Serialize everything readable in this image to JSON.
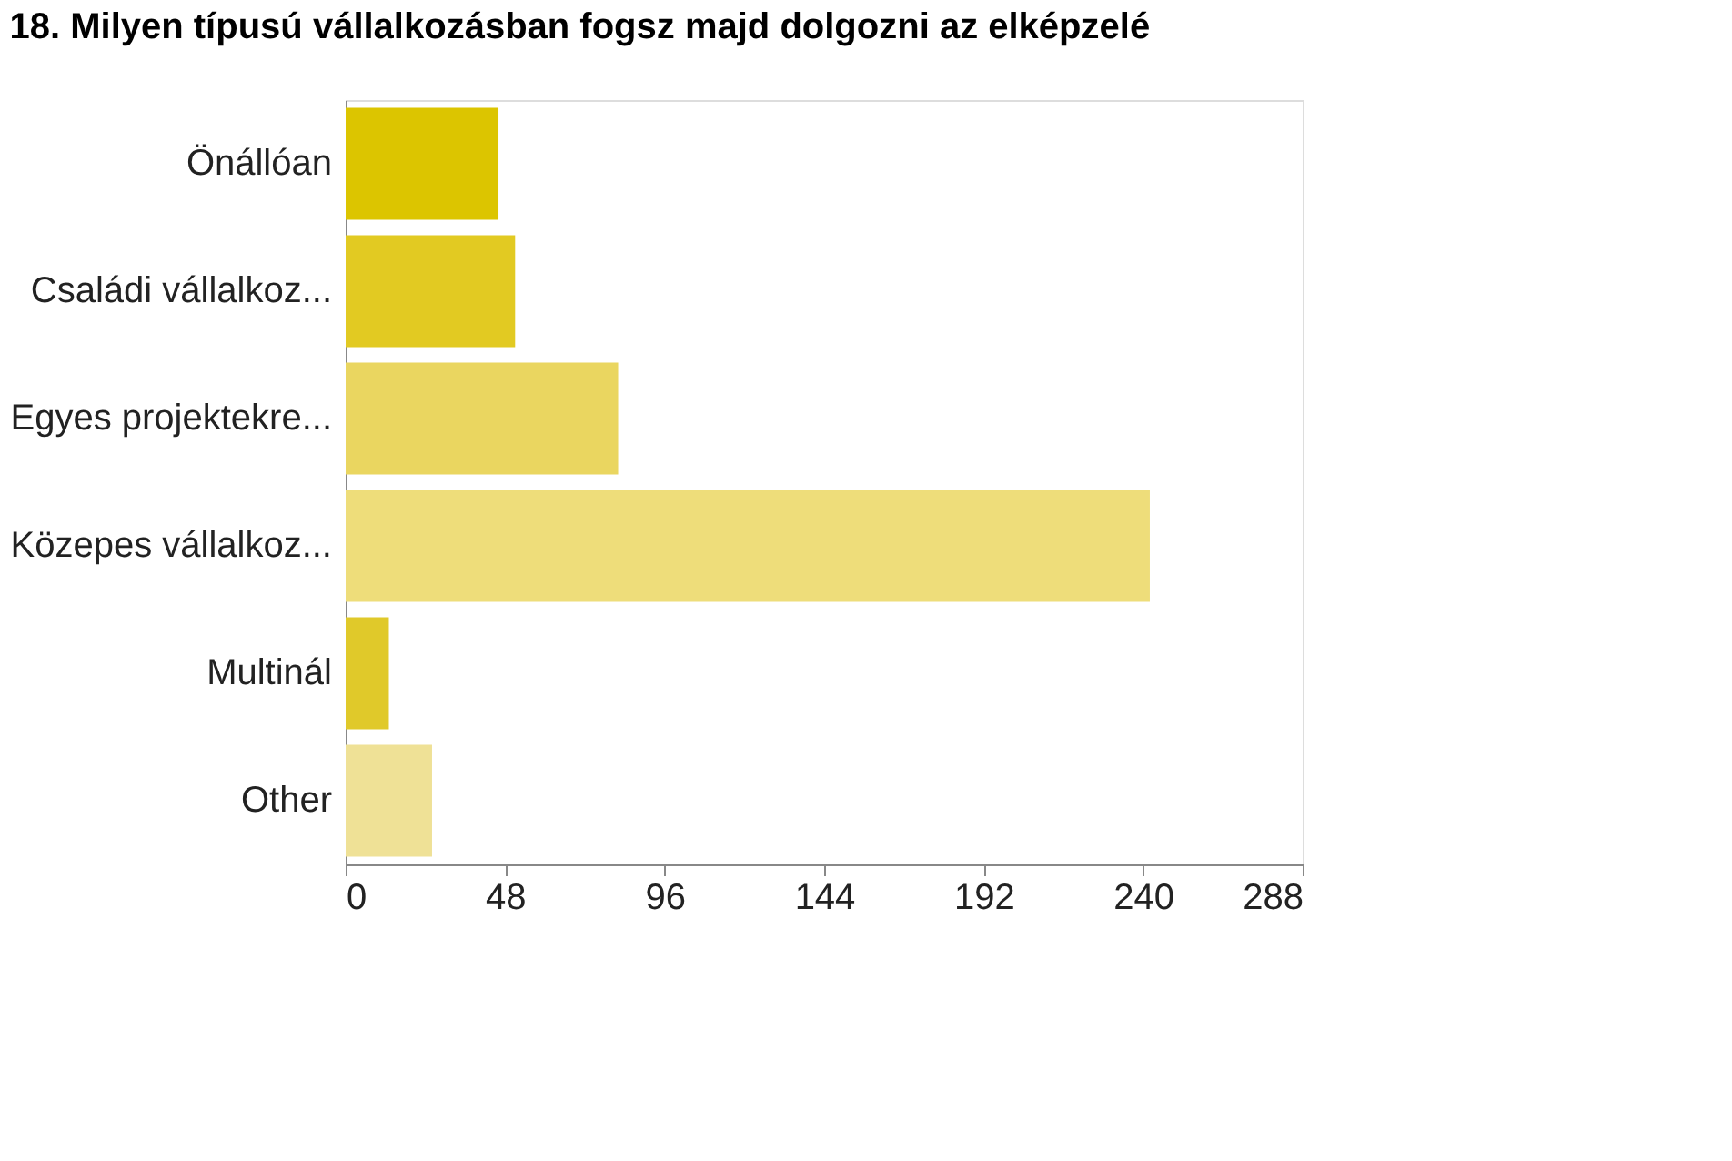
{
  "chart_data": {
    "type": "bar",
    "orientation": "horizontal",
    "title": "18. Milyen típusú vállalkozásban fogsz majd dolgozni az elképzelé",
    "categories": [
      "Önállóan",
      "Családi vállalkoz...",
      "Egyes projektekre...",
      "Közepes vállalkoz...",
      "Multinál",
      "Other"
    ],
    "values": [
      46,
      51,
      82,
      242,
      13,
      26
    ],
    "colors": [
      "#dcc500",
      "#e2ca22",
      "#ead660",
      "#eedd7a",
      "#e0c92a",
      "#efe196"
    ],
    "xlim": [
      0,
      288
    ],
    "xticks": [
      0,
      48,
      96,
      144,
      192,
      240,
      288
    ],
    "grid": false,
    "legend": false
  }
}
